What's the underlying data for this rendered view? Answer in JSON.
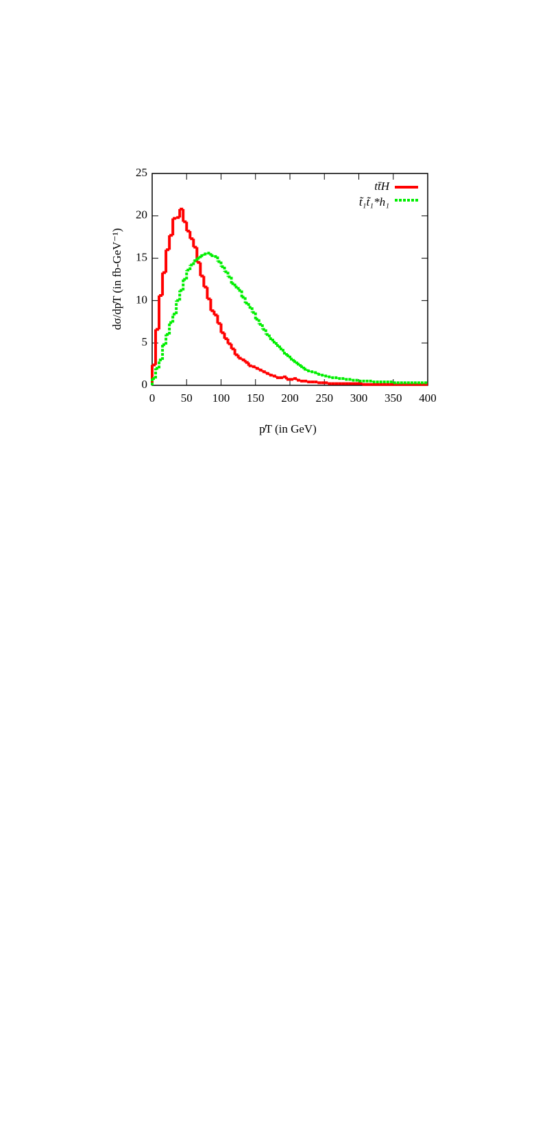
{
  "chart_data": {
    "type": "histogram",
    "xlabel": "p̸T (in GeV)",
    "ylabel": "dσ/dp̸T  (in fb-GeV⁻¹)",
    "bins": [
      0,
      5,
      10,
      15,
      20,
      25,
      30,
      35,
      40,
      45,
      50,
      55,
      60,
      65,
      70,
      75,
      80,
      85,
      90,
      95,
      100,
      105,
      110,
      115,
      120,
      125,
      130,
      135,
      140,
      145,
      150,
      155,
      160,
      165,
      170,
      175,
      180,
      185,
      190,
      195,
      200,
      205,
      210,
      215,
      220,
      225,
      230,
      235,
      240,
      245,
      250,
      255,
      260,
      265,
      270,
      275,
      280,
      285,
      290,
      295,
      300,
      305,
      310,
      315,
      320,
      325,
      330,
      335,
      340,
      345,
      350,
      355,
      360,
      365,
      370,
      375,
      380,
      385,
      390,
      395,
      400
    ],
    "series": [
      {
        "name": "tt̄H",
        "color": "#ff0000",
        "dashed": false,
        "values": [
          2.4,
          6.6,
          10.6,
          13.3,
          16,
          17.7,
          19.7,
          19.8,
          20.8,
          19.3,
          18.2,
          17.3,
          16.3,
          14.5,
          12.9,
          11.6,
          10.2,
          8.8,
          8.3,
          7.3,
          6.2,
          5.5,
          4.9,
          4.3,
          3.6,
          3.2,
          3.0,
          2.7,
          2.3,
          2.2,
          2.0,
          1.8,
          1.6,
          1.4,
          1.2,
          1.1,
          0.9,
          0.9,
          1.0,
          0.7,
          0.7,
          0.8,
          0.6,
          0.5,
          0.5,
          0.4,
          0.4,
          0.4,
          0.3,
          0.3,
          0.3,
          0.2,
          0.2,
          0.2,
          0.2,
          0.2,
          0.2,
          0.2,
          0.2,
          0.2,
          0.2,
          0.1,
          0.1,
          0.1,
          0.1,
          0.1,
          0.1,
          0.1,
          0.1,
          0.1,
          0.1,
          0.1,
          0.1,
          0.1,
          0.1,
          0.1,
          0.1,
          0.1,
          0.1,
          0.1
        ]
      },
      {
        "name": "t̃₁t̃₁*h₁",
        "color": "#00ee00",
        "dashed": true,
        "values": [
          0.8,
          2.0,
          3.0,
          4.8,
          6.0,
          7.4,
          8.4,
          10.0,
          11.2,
          12.5,
          13.6,
          14.2,
          14.7,
          15.0,
          15.3,
          15.5,
          15.6,
          15.3,
          15.2,
          14.6,
          14.0,
          13.4,
          12.8,
          12.0,
          11.6,
          11.2,
          10.4,
          9.7,
          9.2,
          8.6,
          7.8,
          7.2,
          6.6,
          6.0,
          5.5,
          5.1,
          4.7,
          4.3,
          3.8,
          3.5,
          3.1,
          2.8,
          2.5,
          2.2,
          1.9,
          1.7,
          1.6,
          1.5,
          1.3,
          1.2,
          1.1,
          1.0,
          0.9,
          0.9,
          0.8,
          0.8,
          0.7,
          0.7,
          0.6,
          0.6,
          0.5,
          0.5,
          0.5,
          0.5,
          0.4,
          0.4,
          0.4,
          0.4,
          0.4,
          0.4,
          0.3,
          0.3,
          0.3,
          0.3,
          0.3,
          0.3,
          0.3,
          0.3,
          0.3,
          0.3
        ]
      }
    ],
    "xlim": [
      0,
      400
    ],
    "xticks": [
      0,
      50,
      100,
      150,
      200,
      250,
      300,
      350,
      400
    ],
    "ylim": [
      0,
      25
    ],
    "yticks": [
      0,
      5,
      10,
      15,
      20,
      25
    ],
    "legend": "upper right"
  }
}
